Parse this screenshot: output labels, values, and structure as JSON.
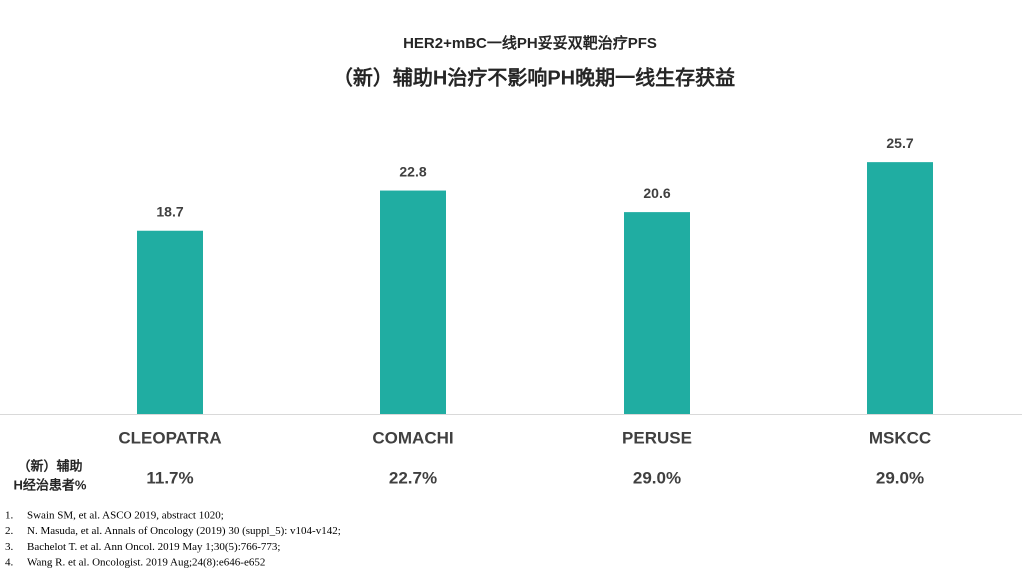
{
  "chart_data": {
    "type": "bar",
    "title": "HER2+mBC一线PH妥妥双靶治疗PFS",
    "subtitle": "（新）辅助H治疗不影响PH晚期一线生存获益",
    "categories": [
      "CLEOPATRA",
      "COMACHI",
      "PERUSE",
      "MSKCC"
    ],
    "values": [
      18.7,
      22.8,
      20.6,
      25.7
    ],
    "color": "#20ada2",
    "ylim": [
      0,
      30
    ]
  },
  "pretreated_row": {
    "label": [
      "（新）辅助",
      "H经治患者%"
    ],
    "values": [
      "11.7%",
      "22.7%",
      "29.0%",
      "29.0%"
    ]
  },
  "references": [
    {
      "number": "1.",
      "text": "Swain SM, et al. ASCO 2019, abstract 1020;"
    },
    {
      "number": "2.",
      "text": "N. Masuda, et al. Annals of Oncology (2019) 30 (suppl_5): v104-v142;"
    },
    {
      "number": "3.",
      "text": "Bachelot T. et al. Ann Oncol. 2019 May 1;30(5):766-773;"
    },
    {
      "number": "4.",
      "text": "Wang R. et al. Oncologist. 2019 Aug;24(8):e646-e652"
    }
  ]
}
